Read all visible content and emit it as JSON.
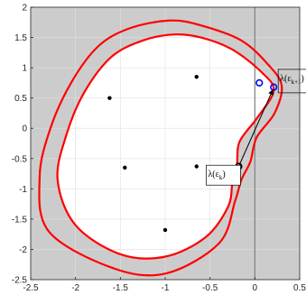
{
  "chart_data": {
    "type": "scatter",
    "xlim": [
      -2.5,
      0.5
    ],
    "ylim": [
      -2.5,
      2.0
    ],
    "x_ticks": [
      "-2.5",
      "-2",
      "-1.5",
      "-1",
      "-0.5",
      "0",
      "0.5"
    ],
    "y_ticks": [
      "-2.5",
      "-2",
      "-1.5",
      "-1",
      "-0.5",
      "0",
      "0.5",
      "1",
      "1.5",
      "2"
    ],
    "grid": true,
    "vertical_line_x": 0.0,
    "eigenvalues": [
      {
        "x": -0.65,
        "y": 0.85
      },
      {
        "x": -1.62,
        "y": 0.5
      },
      {
        "x": -1.45,
        "y": -0.65
      },
      {
        "x": -0.65,
        "y": -0.63
      },
      {
        "x": -1.0,
        "y": -1.68
      }
    ],
    "open_circles": [
      {
        "x": 0.05,
        "y": 0.75
      },
      {
        "x": 0.21,
        "y": 0.68
      }
    ],
    "point_k": {
      "x": -0.18,
      "y": -0.63
    },
    "curves": {
      "inner": {
        "color": "#ff0000",
        "points": [
          [
            -0.6,
            1.5
          ],
          [
            -0.25,
            1.3
          ],
          [
            0.08,
            0.92
          ],
          [
            0.21,
            0.62
          ],
          [
            0.03,
            0.18
          ],
          [
            -0.17,
            -0.22
          ],
          [
            -0.2,
            -0.6
          ],
          [
            -0.25,
            -0.9
          ],
          [
            -0.3,
            -1.3
          ],
          [
            -0.55,
            -1.8
          ],
          [
            -1.0,
            -2.12
          ],
          [
            -1.5,
            -2.08
          ],
          [
            -2.0,
            -1.6
          ],
          [
            -2.2,
            -0.85
          ],
          [
            -2.1,
            -0.1
          ],
          [
            -1.9,
            0.6
          ],
          [
            -1.6,
            1.18
          ],
          [
            -1.25,
            1.45
          ],
          [
            -0.9,
            1.55
          ]
        ]
      },
      "outer": {
        "color": "#ff0000",
        "points": [
          [
            -0.6,
            1.7
          ],
          [
            -0.15,
            1.45
          ],
          [
            0.15,
            1.05
          ],
          [
            0.3,
            0.7
          ],
          [
            0.22,
            0.25
          ],
          [
            0.02,
            -0.15
          ],
          [
            -0.05,
            -0.55
          ],
          [
            -0.15,
            -0.85
          ],
          [
            -0.22,
            -1.2
          ],
          [
            -0.4,
            -1.9
          ],
          [
            -1.0,
            -2.4
          ],
          [
            -1.6,
            -2.3
          ],
          [
            -2.3,
            -1.7
          ],
          [
            -2.4,
            -0.8
          ],
          [
            -2.28,
            0.0
          ],
          [
            -2.05,
            0.75
          ],
          [
            -1.75,
            1.35
          ],
          [
            -1.4,
            1.65
          ],
          [
            -0.95,
            1.78
          ]
        ]
      }
    },
    "annotations": [
      {
        "text": "λ(ε",
        "sub": "k",
        "close": ")",
        "x": -0.2,
        "y": -0.7
      },
      {
        "text": "λ(ε",
        "sub": "k+1",
        "close": ")",
        "x": 0.22,
        "y": 0.75
      }
    ]
  }
}
